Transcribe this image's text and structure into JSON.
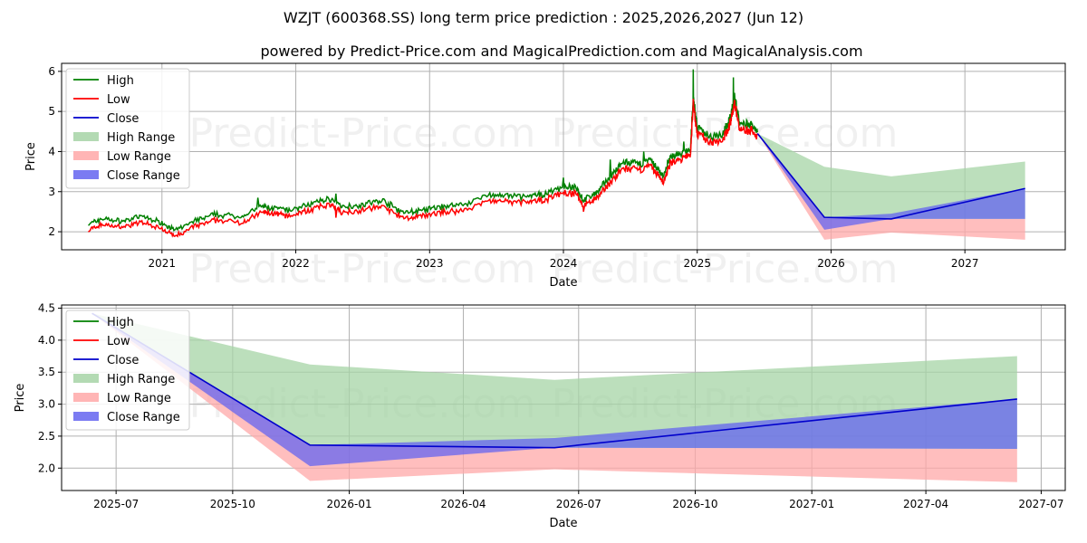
{
  "title": "WZJT (600368.SS) long term price prediction : 2025,2026,2027 (Jun 12)",
  "subtitle": "powered by Predict-Price.com and MagicalPrediction.com and MagicalAnalysis.com",
  "watermark": "Predict-Price.com",
  "colors": {
    "high": "#008000",
    "low": "#ff0000",
    "close": "#0000cc",
    "high_range": "#a6d4a6",
    "low_range": "#ffa8a8",
    "close_range": "#6464f0",
    "grid": "#b0b0b0"
  },
  "chart_data": [
    {
      "type": "line",
      "name": "top",
      "xlabel": "Date",
      "ylabel": "Price",
      "xlim": [
        2020.25,
        2027.75
      ],
      "ylim": [
        1.55,
        6.2
      ],
      "x_ticks": [
        2021,
        2022,
        2023,
        2024,
        2025,
        2026,
        2027
      ],
      "x_tick_labels": [
        "2021",
        "2022",
        "2023",
        "2024",
        "2025",
        "2026",
        "2027"
      ],
      "y_ticks": [
        2,
        3,
        4,
        5,
        6
      ],
      "y_tick_labels": [
        "2",
        "3",
        "4",
        "5",
        "6"
      ],
      "legend": [
        "High",
        "Low",
        "Close",
        "High Range",
        "Low Range",
        "Close Range"
      ],
      "history_close": [
        [
          2020.45,
          2.1
        ],
        [
          2020.55,
          2.25
        ],
        [
          2020.7,
          2.18
        ],
        [
          2020.85,
          2.3
        ],
        [
          2021.0,
          2.15
        ],
        [
          2021.1,
          1.95
        ],
        [
          2021.25,
          2.2
        ],
        [
          2021.4,
          2.35
        ],
        [
          2021.6,
          2.3
        ],
        [
          2021.75,
          2.55
        ],
        [
          2021.85,
          2.5
        ],
        [
          2021.95,
          2.45
        ],
        [
          2022.1,
          2.6
        ],
        [
          2022.25,
          2.75
        ],
        [
          2022.35,
          2.55
        ],
        [
          2022.5,
          2.6
        ],
        [
          2022.65,
          2.7
        ],
        [
          2022.8,
          2.4
        ],
        [
          2022.95,
          2.45
        ],
        [
          2023.1,
          2.55
        ],
        [
          2023.25,
          2.6
        ],
        [
          2023.45,
          2.85
        ],
        [
          2023.6,
          2.8
        ],
        [
          2023.75,
          2.8
        ],
        [
          2023.85,
          2.85
        ],
        [
          2024.0,
          3.05
        ],
        [
          2024.1,
          3.0
        ],
        [
          2024.15,
          2.7
        ],
        [
          2024.25,
          2.9
        ],
        [
          2024.35,
          3.3
        ],
        [
          2024.45,
          3.65
        ],
        [
          2024.55,
          3.6
        ],
        [
          2024.65,
          3.7
        ],
        [
          2024.7,
          3.5
        ],
        [
          2024.75,
          3.3
        ],
        [
          2024.8,
          3.8
        ],
        [
          2024.88,
          3.85
        ],
        [
          2024.95,
          4.0
        ],
        [
          2024.97,
          5.3
        ],
        [
          2025.0,
          4.5
        ],
        [
          2025.1,
          4.3
        ],
        [
          2025.2,
          4.4
        ],
        [
          2025.25,
          4.8
        ],
        [
          2025.28,
          5.3
        ],
        [
          2025.32,
          4.55
        ],
        [
          2025.4,
          4.6
        ],
        [
          2025.45,
          4.45
        ]
      ],
      "spikes_high": [
        [
          2024.97,
          6.05
        ],
        [
          2025.27,
          5.85
        ],
        [
          2024.9,
          4.25
        ],
        [
          2024.6,
          4.0
        ],
        [
          2024.35,
          3.8
        ],
        [
          2024.0,
          3.35
        ],
        [
          2022.3,
          2.95
        ],
        [
          2021.72,
          2.85
        ]
      ],
      "spikes_low": [
        [
          2024.15,
          2.5
        ],
        [
          2021.1,
          1.9
        ],
        [
          2022.3,
          2.35
        ]
      ],
      "forecast_x": [
        2025.45,
        2025.95,
        2026.45,
        2027.45
      ],
      "forecast_close": [
        4.45,
        2.36,
        2.32,
        3.08
      ],
      "high_range": {
        "upper": [
          4.45,
          3.62,
          3.38,
          3.75
        ],
        "lower": [
          4.45,
          2.36,
          2.32,
          2.32
        ]
      },
      "low_range": {
        "upper": [
          4.45,
          2.36,
          2.32,
          2.32
        ],
        "lower": [
          4.45,
          1.8,
          1.98,
          1.8
        ]
      },
      "close_range": {
        "upper": [
          4.45,
          2.36,
          2.45,
          3.08
        ],
        "lower": [
          4.45,
          2.05,
          2.32,
          2.32
        ]
      }
    },
    {
      "type": "line",
      "name": "bottom",
      "xlabel": "Date",
      "ylabel": "Price",
      "xlim": [
        "2025-05-19",
        "2027-07-20"
      ],
      "ylim": [
        1.65,
        4.55
      ],
      "x_ticks": [
        "2025-07-01",
        "2025-10-01",
        "2026-01-01",
        "2026-04-01",
        "2026-07-01",
        "2026-10-01",
        "2027-01-01",
        "2027-04-01",
        "2027-07-01"
      ],
      "x_tick_labels": [
        "2025-07",
        "2025-10",
        "2026-01",
        "2026-04",
        "2026-07",
        "2026-10",
        "2027-01",
        "2027-04",
        "2027-07"
      ],
      "y_ticks": [
        2.0,
        2.5,
        3.0,
        3.5,
        4.0,
        4.5
      ],
      "y_tick_labels": [
        "2.0",
        "2.5",
        "3.0",
        "3.5",
        "4.0",
        "4.5"
      ],
      "legend": [
        "High",
        "Low",
        "Close",
        "High Range",
        "Low Range",
        "Close Range"
      ],
      "forecast_x": [
        "2025-06-12",
        "2025-12-01",
        "2026-06-12",
        "2027-06-12"
      ],
      "forecast_close": [
        4.42,
        2.36,
        2.32,
        3.08
      ],
      "high_range": {
        "upper": [
          4.42,
          3.62,
          3.38,
          3.75
        ],
        "lower": [
          4.42,
          2.36,
          2.32,
          2.3
        ]
      },
      "low_range": {
        "upper": [
          4.42,
          2.36,
          2.32,
          2.3
        ],
        "lower": [
          4.42,
          1.8,
          1.98,
          1.78
        ]
      },
      "close_range": {
        "upper": [
          4.42,
          2.36,
          2.47,
          3.08
        ],
        "lower": [
          4.42,
          2.03,
          2.32,
          2.3
        ]
      }
    }
  ]
}
